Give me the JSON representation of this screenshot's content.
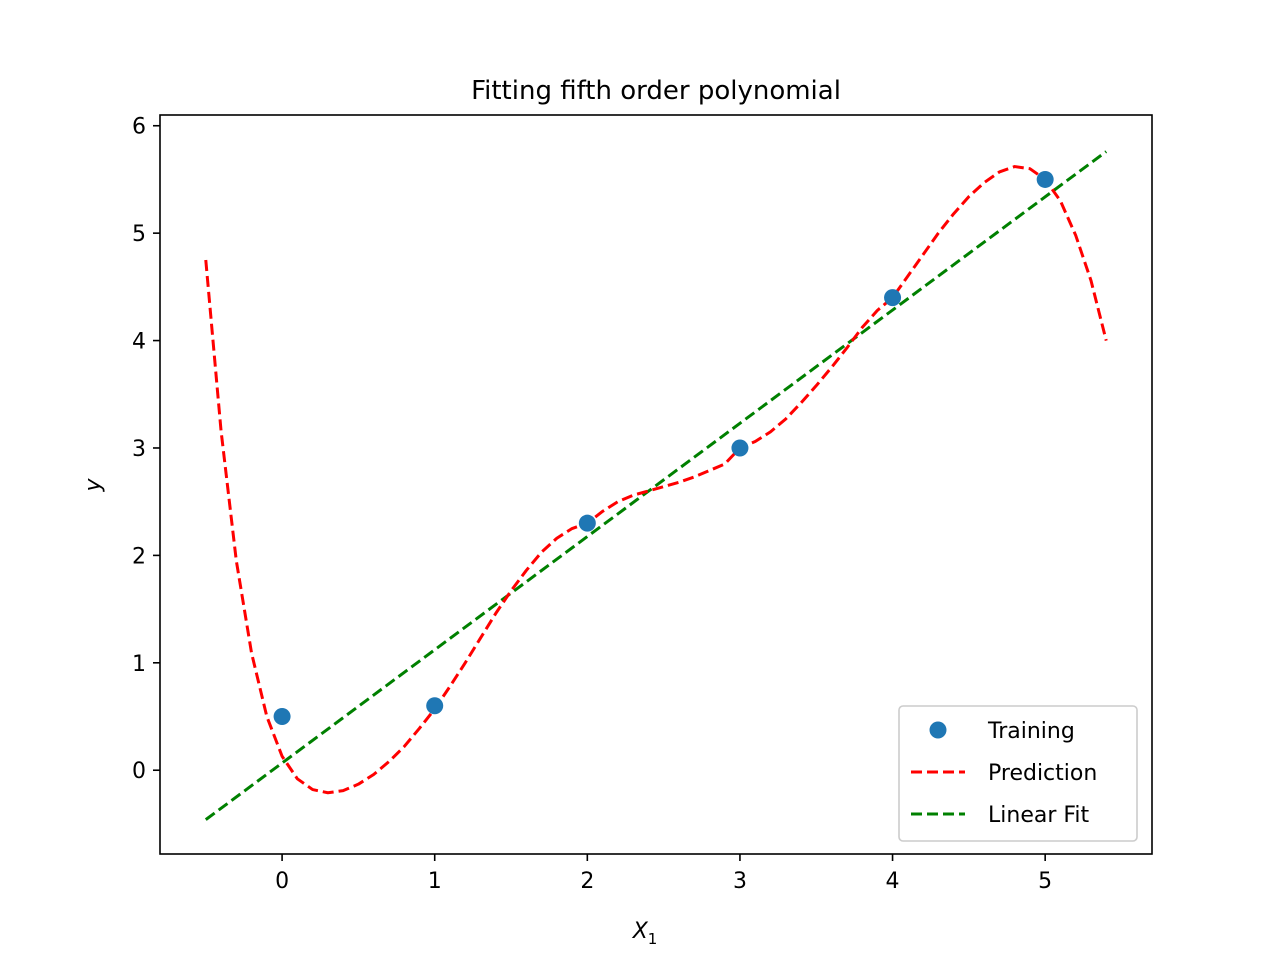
{
  "chart_data": {
    "type": "line",
    "title": "Fitting fifth order polynomial",
    "xlabel": "X",
    "xlabel_subscript": "1",
    "ylabel": "y",
    "xlim": [
      -0.8,
      5.7
    ],
    "ylim": [
      -0.78,
      6.1
    ],
    "xticks": [
      0,
      1,
      2,
      3,
      4,
      5
    ],
    "yticks": [
      0,
      1,
      2,
      3,
      4,
      5,
      6
    ],
    "grid": false,
    "legend_position": "lower-right",
    "series": [
      {
        "name": "Training",
        "kind": "scatter",
        "color": "#1f77b4",
        "x": [
          0,
          1,
          2,
          3,
          4,
          5
        ],
        "y": [
          0.5,
          0.6,
          2.3,
          3.0,
          4.4,
          5.5
        ]
      },
      {
        "name": "Prediction",
        "kind": "line",
        "style": "dashed",
        "color": "#ff0000",
        "x": [
          -0.5,
          -0.4,
          -0.3,
          -0.2,
          -0.1,
          0.0,
          0.1,
          0.2,
          0.3,
          0.4,
          0.5,
          0.6,
          0.7,
          0.8,
          0.9,
          1.0,
          1.1,
          1.2,
          1.3,
          1.4,
          1.5,
          1.6,
          1.7,
          1.8,
          1.9,
          2.0,
          2.1,
          2.2,
          2.3,
          2.4,
          2.5,
          2.6,
          2.7,
          2.8,
          2.9,
          3.0,
          3.1,
          3.2,
          3.3,
          3.4,
          3.5,
          3.6,
          3.7,
          3.8,
          3.9,
          4.0,
          4.1,
          4.2,
          4.3,
          4.4,
          4.5,
          4.6,
          4.7,
          4.8,
          4.9,
          5.0,
          5.1,
          5.2,
          5.3,
          5.4
        ],
        "y": [
          4.75,
          3.16,
          1.95,
          1.09,
          0.5,
          0.13,
          -0.08,
          -0.18,
          -0.21,
          -0.19,
          -0.13,
          -0.04,
          0.08,
          0.22,
          0.39,
          0.57,
          0.78,
          1.0,
          1.23,
          1.46,
          1.67,
          1.86,
          2.03,
          2.16,
          2.25,
          2.3,
          2.41,
          2.5,
          2.56,
          2.6,
          2.64,
          2.68,
          2.73,
          2.79,
          2.85,
          3.0,
          3.06,
          3.15,
          3.27,
          3.42,
          3.58,
          3.75,
          3.93,
          4.12,
          4.28,
          4.4,
          4.6,
          4.8,
          5.0,
          5.18,
          5.34,
          5.47,
          5.57,
          5.62,
          5.6,
          5.5,
          5.3,
          4.98,
          4.56,
          4.0
        ]
      },
      {
        "name": "Linear Fit",
        "kind": "line",
        "style": "dashed",
        "color": "#008000",
        "x": [
          -0.5,
          5.4
        ],
        "y": [
          -0.46,
          5.76
        ]
      }
    ]
  }
}
